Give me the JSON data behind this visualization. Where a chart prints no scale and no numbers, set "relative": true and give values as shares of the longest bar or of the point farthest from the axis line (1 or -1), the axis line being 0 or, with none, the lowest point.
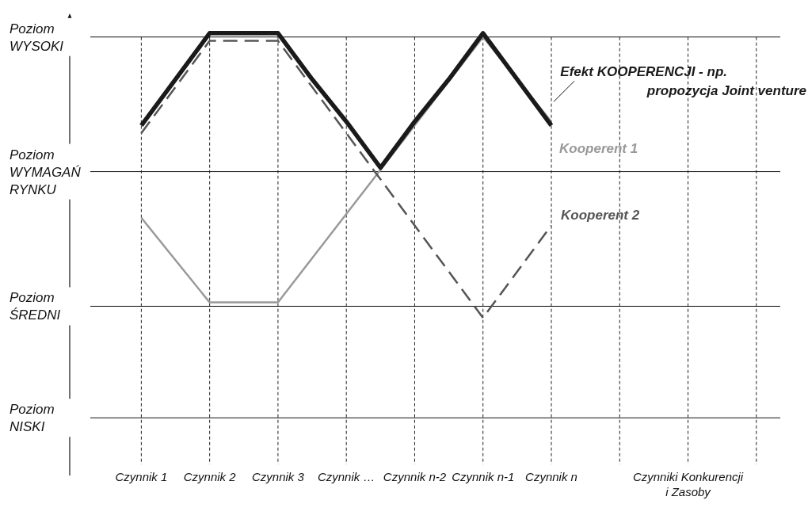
{
  "chart_data": {
    "type": "line",
    "relative": true,
    "categories": [
      "Czynnik 1",
      null,
      "Czynnik 2",
      null,
      "Czynnik 3",
      null,
      "Czynnik …",
      null,
      "Czynnik n-2",
      null,
      "Czynnik n-1",
      null,
      "Czynnik n",
      null,
      null,
      null,
      "Czynniki Konkurencji i Zasoby",
      null,
      null
    ],
    "ref_lines": [
      {
        "axis": "y",
        "value": 0,
        "label": "Poziom NISKI"
      },
      {
        "axis": "y",
        "value": 0.29,
        "label": "Poziom ŚREDNI"
      },
      {
        "axis": "y",
        "value": 0.64,
        "label": "Poziom WYMAGAŃ RYNKU"
      },
      {
        "axis": "y",
        "value": 0.99,
        "label": "Poziom WYSOKI"
      }
    ],
    "grid": "x",
    "marker": "none",
    "series": [
      {
        "name": "Kooperent 1",
        "color": "#999999",
        "line_style": "solid",
        "values": [
          0.52,
          0.41,
          0.3,
          0.3,
          0.3,
          0.415,
          0.53,
          0.645,
          0.76,
          0.875,
          0.99,
          0.88,
          0.77,
          null,
          null,
          null,
          null,
          null,
          null
        ]
      },
      {
        "name": "Kooperent 2",
        "color": "#555555",
        "line_style": "dashed",
        "values": [
          0.74,
          0.86,
          0.98,
          0.98,
          0.98,
          0.86,
          0.74,
          0.62,
          0.5,
          0.38,
          0.26,
          0.38,
          0.5,
          null,
          null,
          null,
          null,
          null,
          null
        ]
      },
      {
        "name": "Efekt KOOPERENCJI - np. propozycja Joint venture",
        "color": "#1a1a1a",
        "line_style": "solid",
        "values": [
          0.76,
          0.88,
          1,
          1,
          1,
          0.88,
          0.77,
          0.65,
          0.77,
          0.88,
          1,
          0.88,
          0.76,
          null,
          null,
          null,
          null,
          null,
          null
        ]
      }
    ]
  }
}
